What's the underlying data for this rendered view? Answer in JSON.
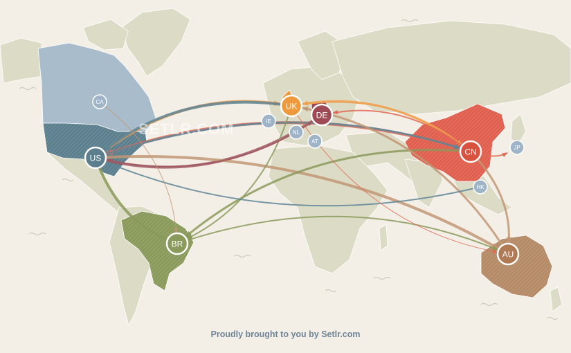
{
  "map": {
    "watermark": "SETLR.COM",
    "footer_text": "Proudly brought to you by Setlr.com",
    "colors": {
      "ocean": "#f3efe6",
      "land": "#dcdcc6",
      "usa": "#5c7f8e",
      "canada": "#a9bccb",
      "brazil": "#8a9a5b",
      "china": "#e05f4e",
      "australia": "#b58a66",
      "uk": "#ee9a3c",
      "germany": "#9e4a55",
      "small_node": "#9fb4c7",
      "flow_us": "#5e8596",
      "flow_uk": "#f0a050",
      "flow_de": "#a05860",
      "flow_cn": "#e06a55",
      "flow_br": "#8a9a5b",
      "flow_au": "#c29674"
    },
    "countries": [
      {
        "code": "US",
        "color": "#5c7f8e",
        "major": true
      },
      {
        "code": "UK",
        "color": "#ee9a3c",
        "major": true
      },
      {
        "code": "DE",
        "color": "#9e4a55",
        "major": true
      },
      {
        "code": "CN",
        "color": "#d9513f",
        "major": true
      },
      {
        "code": "BR",
        "color": "#8a9a5b",
        "major": true
      },
      {
        "code": "AU",
        "color": "#b07a55",
        "major": true
      },
      {
        "code": "CA",
        "color": "#9fb4c7",
        "major": false
      },
      {
        "code": "IE",
        "color": "#9fb4c7",
        "major": false
      },
      {
        "code": "NL",
        "color": "#9fb4c7",
        "major": false
      },
      {
        "code": "AT",
        "color": "#9fb4c7",
        "major": false
      },
      {
        "code": "JP",
        "color": "#9fb4c7",
        "major": false
      },
      {
        "code": "HK",
        "color": "#9fb4c7",
        "major": false
      }
    ],
    "flows": [
      {
        "from": "US",
        "to": "UK",
        "color": "#f0a050",
        "weight": 4
      },
      {
        "from": "UK",
        "to": "US",
        "color": "#5e8596",
        "weight": 4
      },
      {
        "from": "DE",
        "to": "US",
        "color": "#a05860",
        "weight": 4
      },
      {
        "from": "CN",
        "to": "US",
        "color": "#e06a55",
        "weight": 4
      },
      {
        "from": "US",
        "to": "CN",
        "color": "#5e8596",
        "weight": 3
      },
      {
        "from": "US",
        "to": "BR",
        "color": "#8a9a5b",
        "weight": 4
      },
      {
        "from": "US",
        "to": "AU",
        "color": "#c29674",
        "weight": 4
      },
      {
        "from": "CN",
        "to": "UK",
        "color": "#f0a050",
        "weight": 3
      },
      {
        "from": "UK",
        "to": "CN",
        "color": "#f0a050",
        "weight": 2
      },
      {
        "from": "CN",
        "to": "DE",
        "color": "#e06a55",
        "weight": 2
      },
      {
        "from": "CN",
        "to": "AU",
        "color": "#c29674",
        "weight": 3
      },
      {
        "from": "CN",
        "to": "BR",
        "color": "#8a9a5b",
        "weight": 3
      },
      {
        "from": "UK",
        "to": "BR",
        "color": "#8a9a5b",
        "weight": 2
      },
      {
        "from": "AU",
        "to": "UK",
        "color": "#c29674",
        "weight": 3
      },
      {
        "from": "BR",
        "to": "AU",
        "color": "#8a9a5b",
        "weight": 2
      },
      {
        "from": "CN",
        "to": "JP",
        "color": "#e06a55",
        "weight": 2
      },
      {
        "from": "HK",
        "to": "US",
        "color": "#5e8596",
        "weight": 2
      },
      {
        "from": "US",
        "to": "DE",
        "color": "#a05860",
        "weight": 2
      },
      {
        "from": "CA",
        "to": "BR",
        "color": "#c29674",
        "weight": 1
      },
      {
        "from": "UK",
        "to": "AU",
        "color": "#e06a55",
        "weight": 1
      }
    ]
  }
}
